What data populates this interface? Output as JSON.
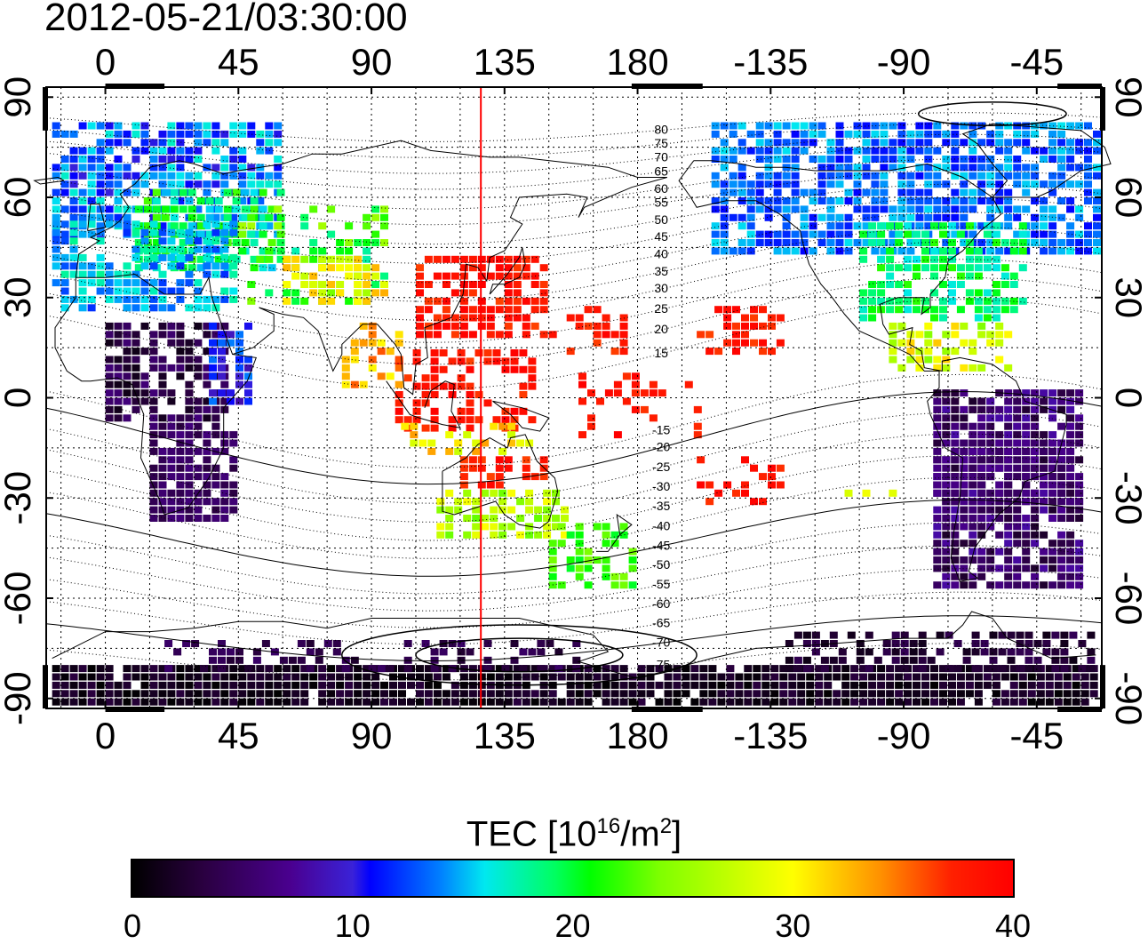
{
  "title": "2012-05-21/03:30:00",
  "map": {
    "lon_ticks_top": [
      "0",
      "45",
      "90",
      "135",
      "180",
      "-135",
      "-90",
      "-45"
    ],
    "lon_ticks_bottom": [
      "0",
      "45",
      "90",
      "135",
      "180",
      "-135",
      "-90",
      "-45"
    ],
    "lat_ticks_left": [
      "90",
      "60",
      "30",
      "0",
      "-30",
      "-60",
      "-90"
    ],
    "lat_ticks_right": [
      "90",
      "60",
      "30",
      "0",
      "-30",
      "-60",
      "-90"
    ],
    "lon_values": [
      0,
      45,
      90,
      135,
      180,
      225,
      270,
      315
    ],
    "lat_values": [
      90,
      60,
      30,
      0,
      -30,
      -60,
      -90
    ],
    "lon_range": [
      -20,
      337
    ],
    "lat_range": [
      -93,
      93
    ],
    "marker_longitude": 127,
    "marker_color": "#ff0000",
    "mlat_labels": [
      "80",
      "75",
      "70",
      "65",
      "60",
      "55",
      "50",
      "45",
      "40",
      "35",
      "30",
      "25",
      "20",
      "15",
      "-15",
      "-20",
      "-25",
      "-30",
      "-35",
      "-40",
      "-45",
      "-50",
      "-55",
      "-60",
      "-65",
      "-70",
      "-75"
    ],
    "mlat_lat": [
      83,
      79,
      75,
      71,
      66,
      62,
      57,
      52,
      47,
      42,
      37,
      31,
      25,
      18,
      -5,
      -10,
      -16,
      -22,
      -28,
      -34,
      -40,
      -46,
      -52,
      -58,
      -64,
      -70,
      -77
    ]
  },
  "colorbar": {
    "label_main": "TEC  [10",
    "label_exp1": "16",
    "label_mid": "/m",
    "label_exp2": "2",
    "label_end": "]",
    "ticks": [
      "0",
      "10",
      "20",
      "30",
      "40"
    ],
    "tick_values": [
      0,
      10,
      20,
      30,
      40
    ],
    "range": [
      0,
      40
    ],
    "colors": [
      "#000000",
      "#4a0090",
      "#0000ff",
      "#00e8f0",
      "#00ff00",
      "#ffff00",
      "#ff9000",
      "#ff0000"
    ]
  }
}
